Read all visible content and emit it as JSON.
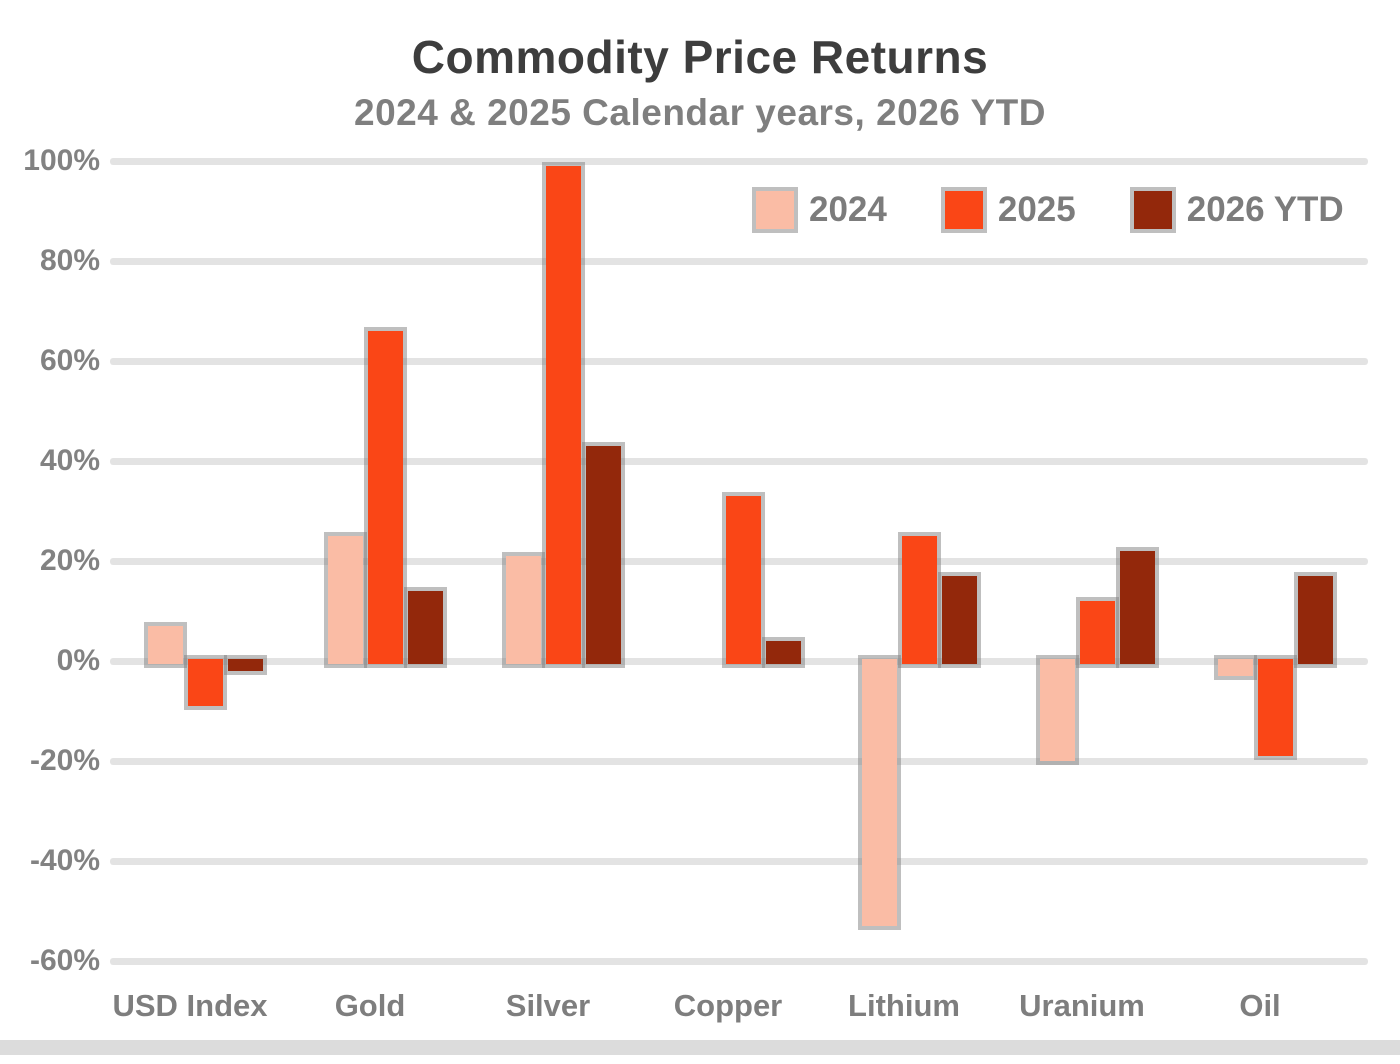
{
  "title": "Commodity Price Returns",
  "subtitle": "2024 & 2025 Calendar years, 2026 YTD",
  "colors": {
    "series_2024": "#FABCA5",
    "series_2025": "#FA4616",
    "series_2026_ytd": "#93280B",
    "title_text": "#3D3D3D",
    "muted_text": "#7F7F7F",
    "gridline": "#E3E3E3",
    "axis_line": "#DCDCDC"
  },
  "legend": {
    "position": "top-right",
    "items": [
      "2024",
      "2025",
      "2026 YTD"
    ]
  },
  "chart_data": {
    "type": "bar",
    "title": "Commodity Price Returns",
    "subtitle": "2024 & 2025 Calendar years, 2026 YTD",
    "categories": [
      "USD Index",
      "Gold",
      "Silver",
      "Copper",
      "Lithium",
      "Uranium",
      "Oil"
    ],
    "series": [
      {
        "name": "2024",
        "color": "#FABCA5",
        "values": [
          7,
          25,
          21,
          0,
          -53,
          -20,
          -3
        ]
      },
      {
        "name": "2025",
        "color": "#FA4616",
        "values": [
          -9,
          66,
          99,
          33,
          25,
          12,
          -19
        ]
      },
      {
        "name": "2026 YTD",
        "color": "#93280B",
        "values": [
          -2,
          14,
          43,
          4,
          17,
          22,
          17
        ]
      }
    ],
    "xlabel": "",
    "ylabel": "",
    "ylim": [
      -60,
      100
    ],
    "grid": true,
    "legend_position": "top-right",
    "y_ticks": [
      {
        "label": "100%",
        "value": 100
      },
      {
        "label": "80%",
        "value": 80
      },
      {
        "label": "60%",
        "value": 60
      },
      {
        "label": "40%",
        "value": 40
      },
      {
        "label": "20%",
        "value": 20
      },
      {
        "label": "0%",
        "value": 0
      },
      {
        "label": "-20%",
        "value": -20
      },
      {
        "label": "-40%",
        "value": -40
      },
      {
        "label": "-60%",
        "value": -60
      }
    ]
  }
}
